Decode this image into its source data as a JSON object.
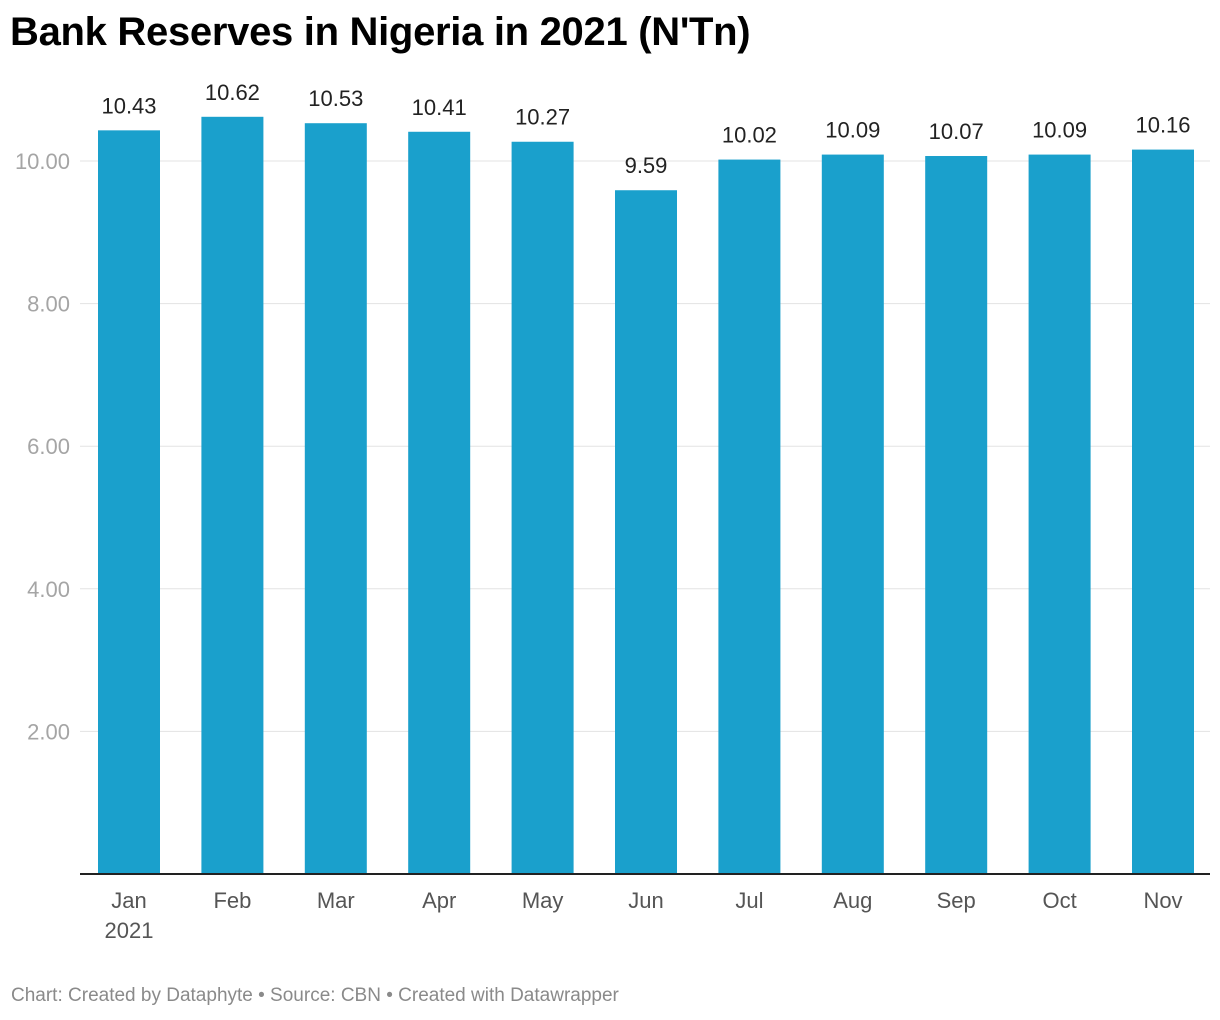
{
  "chart_data": {
    "type": "bar",
    "title": "Bank Reserves in Nigeria in 2021 (N'Tn)",
    "categories": [
      "Jan",
      "Feb",
      "Mar",
      "Apr",
      "May",
      "Jun",
      "Jul",
      "Aug",
      "Sep",
      "Oct",
      "Nov"
    ],
    "category_sublabels": [
      "2021",
      "",
      "",
      "",
      "",
      "",
      "",
      "",
      "",
      "",
      ""
    ],
    "values": [
      10.43,
      10.62,
      10.53,
      10.41,
      10.27,
      9.59,
      10.02,
      10.09,
      10.07,
      10.09,
      10.16
    ],
    "value_labels": [
      "10.43",
      "10.62",
      "10.53",
      "10.41",
      "10.27",
      "9.59",
      "10.02",
      "10.09",
      "10.07",
      "10.09",
      "10.16"
    ],
    "yticks": [
      2,
      4,
      6,
      8,
      10
    ],
    "ytick_labels": [
      "2.00",
      "4.00",
      "6.00",
      "8.00",
      "10.00"
    ],
    "ylim": [
      0,
      11
    ],
    "xlabel": "",
    "ylabel": "",
    "grid": true,
    "bar_color": "#1aa0cc"
  },
  "footer": {
    "text": "Chart: Created by Dataphyte • Source: CBN • Created with Datawrapper"
  }
}
